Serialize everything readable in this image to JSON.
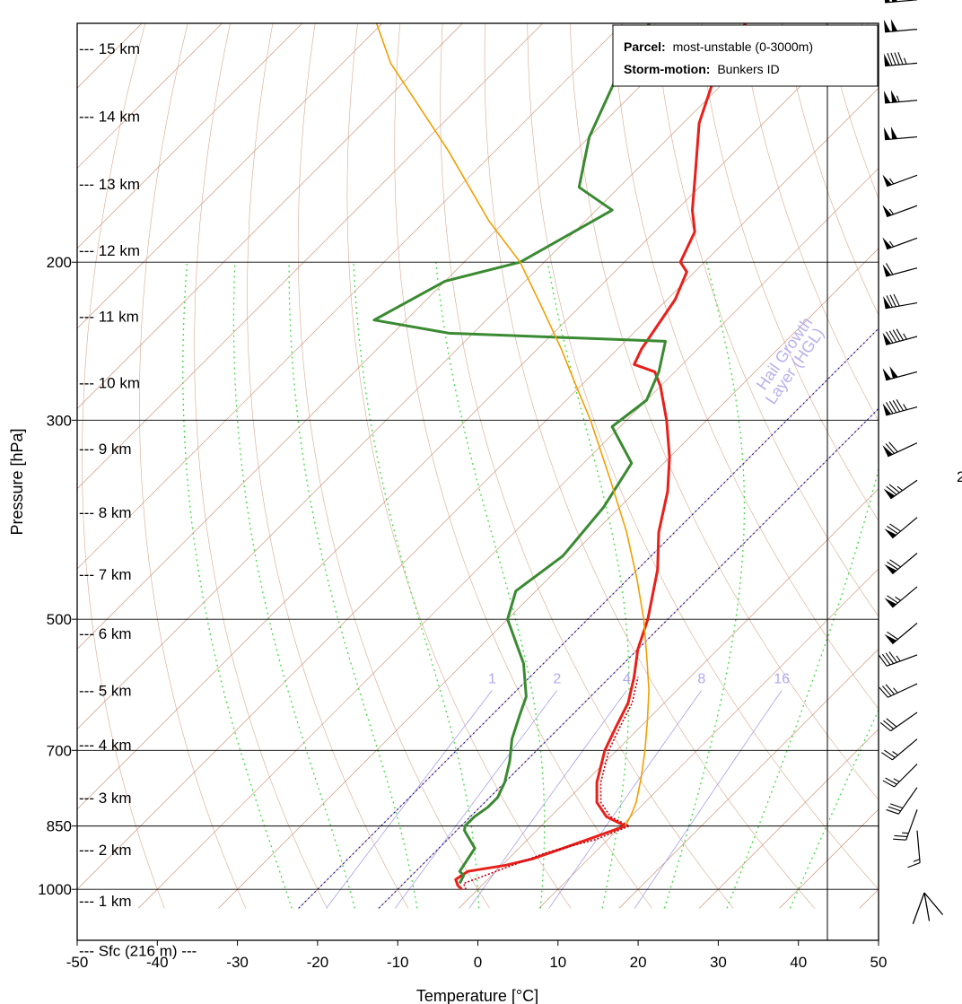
{
  "chart_data": {
    "type": "line",
    "title": "",
    "xlabel": "Temperature [°C]",
    "ylabel": "Pressure [hPa]",
    "xlim": [
      -50,
      50
    ],
    "ylim": [
      1050,
      100
    ],
    "x_ticks": [
      "-50",
      "-40",
      "-30",
      "-20",
      "-10",
      "0",
      "10",
      "20",
      "30",
      "40",
      "50"
    ],
    "y_ticks": [
      {
        "p": 100,
        "label": "100"
      },
      {
        "p": 200,
        "label": "200"
      },
      {
        "p": 300,
        "label": "300"
      },
      {
        "p": 500,
        "label": "500"
      },
      {
        "p": 700,
        "label": "700"
      },
      {
        "p": 850,
        "label": "850"
      },
      {
        "p": 1000,
        "label": "1000"
      }
    ],
    "height_labels": [
      {
        "p": 115.6,
        "label": "--- 15 km"
      },
      {
        "p": 137.5,
        "label": "--- 14 km"
      },
      {
        "p": 163.6,
        "label": "--- 13 km"
      },
      {
        "p": 194.1,
        "label": "--- 12 km"
      },
      {
        "p": 229.9,
        "label": "--- 11 km"
      },
      {
        "p": 272.6,
        "label": "--- 10 km"
      },
      {
        "p": 322.7,
        "label": "--- 9 km"
      },
      {
        "p": 380.2,
        "label": "--- 8 km"
      },
      {
        "p": 445.6,
        "label": "--- 7 km"
      },
      {
        "p": 518.3,
        "label": "--- 6 km"
      },
      {
        "p": 600.4,
        "label": "--- 5 km"
      },
      {
        "p": 690.3,
        "label": "--- 4 km"
      },
      {
        "p": 790.6,
        "label": "--- 3 km"
      },
      {
        "p": 902.8,
        "label": "--- 2 km"
      },
      {
        "p": 1030.0,
        "label": "--- 1 km"
      },
      {
        "p": 1170.0,
        "label": "--- Sfc (216 m) ---"
      }
    ],
    "mixing_ratio_labels": [
      "1",
      "2",
      "4",
      "8",
      "16"
    ],
    "hail_growth_layer_label": [
      "Hail Growth",
      "Layer (HGL)"
    ],
    "legend": {
      "parcel_key": "Parcel:",
      "parcel_value": "most-unstable (0-3000m)",
      "storm_key": "Storm-motion:",
      "storm_value": "Bunkers ID"
    },
    "clipped_right_text": "2",
    "series": [
      {
        "name": "Temperature",
        "color": "#e8201a",
        "points": [
          [
            -2,
            1000
          ],
          [
            -3,
            990
          ],
          [
            -4,
            975
          ],
          [
            -3.5,
            955
          ],
          [
            0.5,
            940
          ],
          [
            3,
            925
          ],
          [
            5.5,
            900
          ],
          [
            8,
            875
          ],
          [
            10.5,
            850
          ],
          [
            7,
            830
          ],
          [
            4,
            800
          ],
          [
            1.5,
            760
          ],
          [
            -1.5,
            700
          ],
          [
            -3,
            660
          ],
          [
            -4.5,
            620
          ],
          [
            -7,
            580
          ],
          [
            -10,
            540
          ],
          [
            -12.5,
            500
          ],
          [
            -17.5,
            440
          ],
          [
            -22,
            400
          ],
          [
            -26,
            360
          ],
          [
            -30,
            330
          ],
          [
            -35,
            300
          ],
          [
            -40,
            275
          ],
          [
            -42.5,
            265
          ],
          [
            -46,
            260
          ],
          [
            -47,
            250
          ],
          [
            -49,
            220
          ],
          [
            -51,
            205
          ],
          [
            -53,
            200
          ],
          [
            -55,
            185
          ],
          [
            -58,
            175
          ],
          [
            -62,
            160
          ],
          [
            -68,
            140
          ],
          [
            -73,
            120
          ],
          [
            -76,
            100
          ]
        ]
      },
      {
        "name": "Dewpoint",
        "color": "#3a8a32",
        "points": [
          [
            -3,
            985
          ],
          [
            -3.5,
            965
          ],
          [
            -4.5,
            955
          ],
          [
            -5.5,
            900
          ],
          [
            -9,
            860
          ],
          [
            -9.5,
            850
          ],
          [
            -9.5,
            830
          ],
          [
            -9,
            810
          ],
          [
            -9,
            790
          ],
          [
            -10,
            760
          ],
          [
            -12,
            720
          ],
          [
            -14.5,
            680
          ],
          [
            -16.5,
            640
          ],
          [
            -18,
            610
          ],
          [
            -22.5,
            560
          ],
          [
            -30,
            500
          ],
          [
            -32.5,
            465
          ],
          [
            -31,
            425
          ],
          [
            -32,
            375
          ],
          [
            -34,
            335
          ],
          [
            -41,
            305
          ],
          [
            -40,
            285
          ],
          [
            -42,
            265
          ],
          [
            -45,
            245
          ],
          [
            -73,
            240
          ],
          [
            -84,
            232
          ],
          [
            -80,
            210
          ],
          [
            -73,
            200
          ],
          [
            -68,
            175
          ],
          [
            -75,
            165
          ],
          [
            -80,
            145
          ],
          [
            -85,
            120
          ],
          [
            -88,
            100
          ]
        ]
      },
      {
        "name": "Parcel (most-unstable)",
        "color": "#f0a000",
        "points": [
          [
            10.5,
            850
          ],
          [
            9.8,
            825
          ],
          [
            8.9,
            800
          ],
          [
            6.4,
            750
          ],
          [
            3.5,
            700
          ],
          [
            0.2,
            650
          ],
          [
            -3.5,
            600
          ],
          [
            -8,
            550
          ],
          [
            -13,
            500
          ],
          [
            -19,
            450
          ],
          [
            -26,
            400
          ],
          [
            -34.5,
            350
          ],
          [
            -44.5,
            300
          ],
          [
            -50.5,
            275
          ],
          [
            -57,
            250
          ],
          [
            -64.5,
            225
          ],
          [
            -73,
            200
          ],
          [
            -82,
            180
          ],
          [
            -96,
            150
          ],
          [
            -114,
            120
          ],
          [
            -126,
            100
          ]
        ]
      },
      {
        "name": "Virtual temperature",
        "color": "#c00010",
        "dashed": true,
        "points": [
          [
            -1.5,
            1000
          ],
          [
            -2.5,
            985
          ],
          [
            4,
            910
          ],
          [
            8.5,
            880
          ],
          [
            11,
            850
          ],
          [
            7.5,
            830
          ],
          [
            4.5,
            800
          ],
          [
            2,
            760
          ],
          [
            -1,
            700
          ],
          [
            -2.5,
            660
          ],
          [
            -4,
            620
          ],
          [
            -6.5,
            580
          ]
        ]
      }
    ],
    "hgl_lines_t0": [
      -10,
      -20
    ],
    "wind_barbs": [
      {
        "p": 102,
        "dir": 265,
        "kt": 100
      },
      {
        "p": 110,
        "dir": 265,
        "kt": 100
      },
      {
        "p": 120,
        "dir": 265,
        "kt": 95
      },
      {
        "p": 132,
        "dir": 265,
        "kt": 105
      },
      {
        "p": 145,
        "dir": 265,
        "kt": 100
      },
      {
        "p": 160,
        "dir": 250,
        "kt": 55
      },
      {
        "p": 173,
        "dir": 250,
        "kt": 55
      },
      {
        "p": 188,
        "dir": 250,
        "kt": 55
      },
      {
        "p": 203,
        "dir": 255,
        "kt": 60
      },
      {
        "p": 222,
        "dir": 260,
        "kt": 80
      },
      {
        "p": 242,
        "dir": 255,
        "kt": 95
      },
      {
        "p": 265,
        "dir": 255,
        "kt": 100
      },
      {
        "p": 290,
        "dir": 255,
        "kt": 95
      },
      {
        "p": 318,
        "dir": 245,
        "kt": 70
      },
      {
        "p": 350,
        "dir": 235,
        "kt": 75
      },
      {
        "p": 385,
        "dir": 230,
        "kt": 70
      },
      {
        "p": 422,
        "dir": 230,
        "kt": 70
      },
      {
        "p": 460,
        "dir": 230,
        "kt": 65
      },
      {
        "p": 505,
        "dir": 230,
        "kt": 60
      },
      {
        "p": 548,
        "dir": 250,
        "kt": 45
      },
      {
        "p": 590,
        "dir": 245,
        "kt": 35
      },
      {
        "p": 635,
        "dir": 235,
        "kt": 30
      },
      {
        "p": 680,
        "dir": 230,
        "kt": 25
      },
      {
        "p": 725,
        "dir": 225,
        "kt": 25
      },
      {
        "p": 770,
        "dir": 215,
        "kt": 30
      },
      {
        "p": 815,
        "dir": 200,
        "kt": 25
      },
      {
        "p": 860,
        "dir": 175,
        "kt": 15
      }
    ],
    "hodo_marks": [
      {
        "dir": 170,
        "kt": 10
      },
      {
        "dir": 200,
        "kt": 15
      },
      {
        "dir": 140,
        "kt": 10
      }
    ]
  }
}
